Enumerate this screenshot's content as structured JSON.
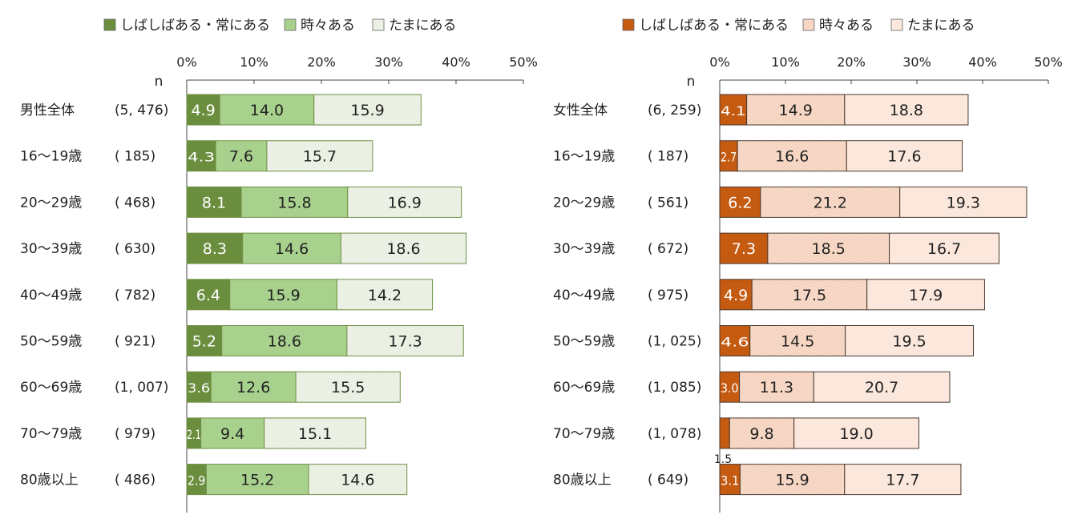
{
  "colors": {
    "male_dark": "#6b8e3e",
    "male_mid": "#a9d18e",
    "male_light": "#f2f6ec",
    "male_border": "#6f8f45",
    "female_dark": "#c55a11",
    "female_mid": "#f5d7c3",
    "female_light": "#fbe7dc",
    "female_border": "#4a3a30",
    "axis": "#444444",
    "text": "#222222"
  },
  "chart_data": [
    {
      "type": "bar",
      "orientation": "horizontal",
      "stacked": true,
      "panel": "male",
      "xlim": [
        0,
        50
      ],
      "xticks": [
        "0%",
        "10%",
        "20%",
        "30%",
        "40%",
        "50%"
      ],
      "n_header": "n",
      "legend": [
        "しばしばある・常にある",
        "時々ある",
        "たまにある"
      ],
      "categories": [
        "男性全体",
        "16～19歳",
        "20～29歳",
        "30～39歳",
        "40～49歳",
        "50～59歳",
        "60～69歳",
        "70～79歳",
        "80歳以上"
      ],
      "n_labels": [
        "(5, 476)",
        "(   185)",
        "(   468)",
        "(   630)",
        "(   782)",
        "(   921)",
        "(1, 007)",
        "(   979)",
        "(   486)"
      ],
      "series": [
        {
          "name": "しばしばある・常にある",
          "values": [
            4.9,
            4.3,
            8.1,
            8.3,
            6.4,
            5.2,
            3.6,
            2.1,
            2.9
          ],
          "labels": [
            "4.9",
            "4.3",
            "8.1",
            "8.3",
            "6.4",
            "5.2",
            "3.6",
            "2.1",
            "2.9"
          ]
        },
        {
          "name": "時々ある",
          "values": [
            14.0,
            7.6,
            15.8,
            14.6,
            15.9,
            18.6,
            12.6,
            9.4,
            15.2
          ],
          "labels": [
            "14.0",
            "7.6",
            "15.8",
            "14.6",
            "15.9",
            "18.6",
            "12.6",
            "9.4",
            "15.2"
          ]
        },
        {
          "name": "たまにある",
          "values": [
            15.9,
            15.7,
            16.9,
            18.6,
            14.2,
            17.3,
            15.5,
            15.1,
            14.6
          ],
          "labels": [
            "15.9",
            "15.7",
            "16.9",
            "18.6",
            "14.2",
            "17.3",
            "15.5",
            "15.1",
            "14.6"
          ]
        }
      ]
    },
    {
      "type": "bar",
      "orientation": "horizontal",
      "stacked": true,
      "panel": "female",
      "xlim": [
        0,
        50
      ],
      "xticks": [
        "0%",
        "10%",
        "20%",
        "30%",
        "40%",
        "50%"
      ],
      "n_header": "n",
      "legend": [
        "しばしばある・常にある",
        "時々ある",
        "たまにある"
      ],
      "categories": [
        "女性全体",
        "16～19歳",
        "20～29歳",
        "30～39歳",
        "40～49歳",
        "50～59歳",
        "60～69歳",
        "70～79歳",
        "80歳以上"
      ],
      "n_labels": [
        "(6, 259)",
        "(   187)",
        "(   561)",
        "(   672)",
        "(   975)",
        "(1, 025)",
        "(1, 085)",
        "(1, 078)",
        "(   649)"
      ],
      "series": [
        {
          "name": "しばしばある・常にある",
          "values": [
            4.1,
            2.7,
            6.2,
            7.3,
            4.9,
            4.6,
            3.0,
            1.5,
            3.1
          ],
          "labels": [
            "4.1",
            "2.7",
            "6.2",
            "7.3",
            "4.9",
            "4.6",
            "3.0",
            "1.5",
            "3.1"
          ]
        },
        {
          "name": "時々ある",
          "values": [
            14.9,
            16.6,
            21.2,
            18.5,
            17.5,
            14.5,
            11.3,
            9.8,
            15.9
          ],
          "labels": [
            "14.9",
            "16.6",
            "21.2",
            "18.5",
            "17.5",
            "14.5",
            "11.3",
            "9.8",
            "15.9"
          ]
        },
        {
          "name": "たまにある",
          "values": [
            18.8,
            17.6,
            19.3,
            16.7,
            17.9,
            19.5,
            20.7,
            19.0,
            17.7
          ],
          "labels": [
            "18.8",
            "17.6",
            "19.3",
            "16.7",
            "17.9",
            "19.5",
            "20.7",
            "19.0",
            "17.7"
          ]
        }
      ]
    }
  ]
}
